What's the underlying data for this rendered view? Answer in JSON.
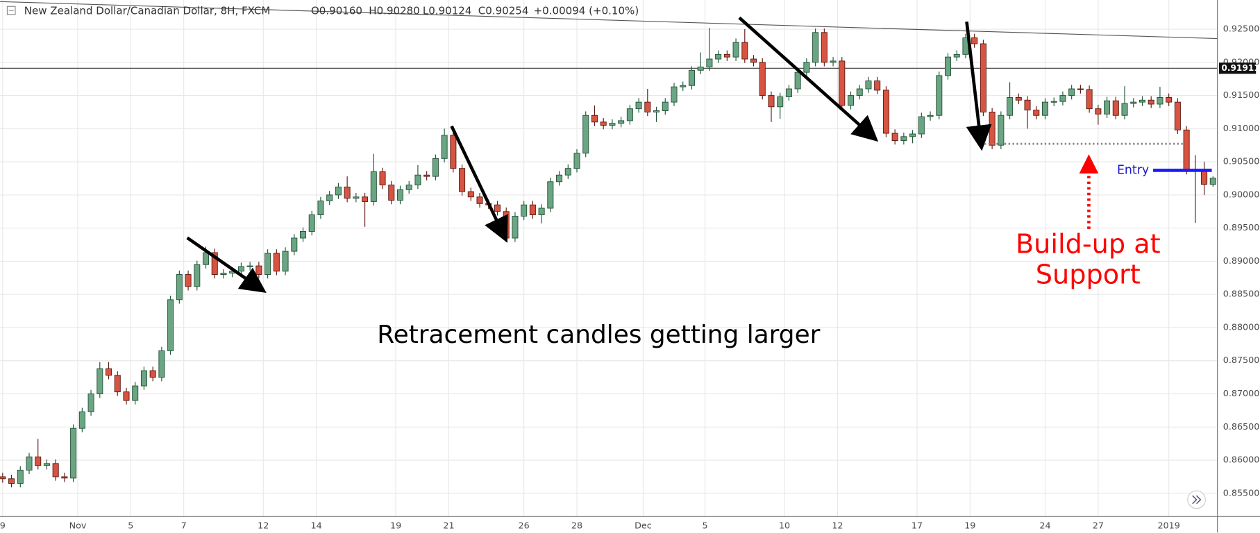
{
  "header": {
    "symbol": "New Zealand Dollar/Canadian Dollar, 8H, FXCM",
    "open": "O0.90160",
    "high": "H0.90280",
    "low": "L0.90124",
    "close": "C0.90254",
    "change": "+0.00094 (+0.10%)"
  },
  "chart_data": {
    "type": "candlestick",
    "open": [
      0.8575,
      0.8572,
      0.8565,
      0.8585,
      0.8605,
      0.8592,
      0.8595,
      0.8575,
      0.8573,
      0.8648,
      0.8673,
      0.87,
      0.8738,
      0.8728,
      0.8703,
      0.869,
      0.8712,
      0.8735,
      0.8725,
      0.8765,
      0.8842,
      0.888,
      0.8862,
      0.8895,
      0.8913,
      0.888,
      0.8882,
      0.8885,
      0.8892,
      0.8893,
      0.888,
      0.8912,
      0.8885,
      0.8915,
      0.8935,
      0.8945,
      0.897,
      0.8991,
      0.9,
      0.9012,
      0.8995,
      0.8997,
      0.899,
      0.9035,
      0.9015,
      0.8992,
      0.9008,
      0.9015,
      0.903,
      0.9028,
      0.9055,
      0.909,
      0.904,
      0.9005,
      0.8997,
      0.8987,
      0.8985,
      0.8975,
      0.8935,
      0.8968,
      0.8985,
      0.897,
      0.898,
      0.902,
      0.903,
      0.904,
      0.9063,
      0.912,
      0.911,
      0.9105,
      0.9108,
      0.9112,
      0.913,
      0.914,
      0.9125,
      0.9127,
      0.914,
      0.9163,
      0.9165,
      0.9188,
      0.9193,
      0.9205,
      0.9212,
      0.9208,
      0.923,
      0.9205,
      0.92,
      0.915,
      0.9133,
      0.9148,
      0.916,
      0.9185,
      0.92,
      0.9245,
      0.92,
      0.9202,
      0.9135,
      0.915,
      0.916,
      0.9172,
      0.9158,
      0.9093,
      0.9082,
      0.9088,
      0.9092,
      0.9118,
      0.912,
      0.918,
      0.9208,
      0.9212,
      0.9237,
      0.9228,
      0.9125,
      0.9075,
      0.912,
      0.9147,
      0.9143,
      0.9128,
      0.912,
      0.914,
      0.9141,
      0.915,
      0.916,
      0.9159,
      0.913,
      0.9122,
      0.9142,
      0.912,
      0.9138,
      0.914,
      0.9143,
      0.9137,
      0.9147,
      0.914,
      0.9098,
      0.9037,
      0.9036,
      0.9016
    ],
    "high": [
      0.8581,
      0.8578,
      0.8591,
      0.8611,
      0.8632,
      0.8601,
      0.8601,
      0.8581,
      0.8654,
      0.8679,
      0.8706,
      0.8748,
      0.8748,
      0.8734,
      0.8709,
      0.8718,
      0.8741,
      0.8741,
      0.8771,
      0.8848,
      0.8886,
      0.8886,
      0.8901,
      0.8922,
      0.8919,
      0.8888,
      0.8891,
      0.8898,
      0.8899,
      0.8899,
      0.8918,
      0.8918,
      0.8921,
      0.8941,
      0.8951,
      0.8976,
      0.8997,
      0.9006,
      0.9018,
      0.9028,
      0.9003,
      0.9003,
      0.9062,
      0.9041,
      0.9021,
      0.9014,
      0.9021,
      0.9045,
      0.9036,
      0.9061,
      0.91,
      0.9096,
      0.9046,
      0.9011,
      0.9003,
      0.8993,
      0.8991,
      0.8981,
      0.8974,
      0.8991,
      0.8991,
      0.8986,
      0.9026,
      0.9036,
      0.9046,
      0.9069,
      0.9126,
      0.9135,
      0.9116,
      0.9114,
      0.9118,
      0.9136,
      0.9146,
      0.916,
      0.9133,
      0.9146,
      0.9169,
      0.9171,
      0.9194,
      0.9215,
      0.9252,
      0.9218,
      0.9218,
      0.9236,
      0.925,
      0.9211,
      0.9206,
      0.9156,
      0.9154,
      0.9166,
      0.9191,
      0.9206,
      0.9251,
      0.9251,
      0.9208,
      0.9208,
      0.9156,
      0.9166,
      0.9178,
      0.9178,
      0.9164,
      0.9099,
      0.9094,
      0.9098,
      0.9124,
      0.9126,
      0.9186,
      0.9214,
      0.9218,
      0.9243,
      0.9243,
      0.9234,
      0.9131,
      0.9126,
      0.917,
      0.9153,
      0.9149,
      0.9134,
      0.9146,
      0.9147,
      0.9156,
      0.9166,
      0.9166,
      0.9165,
      0.9136,
      0.9148,
      0.9148,
      0.9164,
      0.9146,
      0.9149,
      0.9149,
      0.9163,
      0.9153,
      0.9146,
      0.9104,
      0.906,
      0.905,
      0.9028
    ],
    "low": [
      0.8566,
      0.8559,
      0.8559,
      0.8579,
      0.8586,
      0.8586,
      0.8569,
      0.8567,
      0.8567,
      0.8642,
      0.8667,
      0.8694,
      0.8722,
      0.8697,
      0.8684,
      0.8684,
      0.8706,
      0.8719,
      0.8719,
      0.8759,
      0.8836,
      0.8856,
      0.8856,
      0.8889,
      0.8874,
      0.8874,
      0.8876,
      0.8879,
      0.8886,
      0.8874,
      0.8874,
      0.8879,
      0.8879,
      0.8909,
      0.8929,
      0.8939,
      0.8964,
      0.8985,
      0.8994,
      0.8989,
      0.8989,
      0.8952,
      0.8984,
      0.9009,
      0.8986,
      0.8986,
      0.9002,
      0.9009,
      0.9022,
      0.9022,
      0.9049,
      0.9034,
      0.8999,
      0.8991,
      0.8981,
      0.8979,
      0.8969,
      0.8929,
      0.8929,
      0.8962,
      0.8964,
      0.8957,
      0.8974,
      0.9014,
      0.9024,
      0.9034,
      0.9057,
      0.9104,
      0.9099,
      0.9099,
      0.9102,
      0.9106,
      0.9124,
      0.9119,
      0.911,
      0.9121,
      0.9134,
      0.9157,
      0.9159,
      0.9182,
      0.9187,
      0.9199,
      0.9202,
      0.9202,
      0.9199,
      0.9194,
      0.9144,
      0.911,
      0.9115,
      0.9142,
      0.9154,
      0.9179,
      0.9194,
      0.9194,
      0.9194,
      0.9129,
      0.9129,
      0.9144,
      0.9154,
      0.9152,
      0.9087,
      0.9076,
      0.9076,
      0.9078,
      0.9086,
      0.9112,
      0.9114,
      0.9174,
      0.9202,
      0.9206,
      0.9222,
      0.9119,
      0.9069,
      0.9069,
      0.9114,
      0.9137,
      0.91,
      0.9114,
      0.9114,
      0.9134,
      0.9135,
      0.9144,
      0.9153,
      0.9124,
      0.9106,
      0.9116,
      0.9114,
      0.9114,
      0.9132,
      0.9134,
      0.9131,
      0.9131,
      0.9134,
      0.9092,
      0.9031,
      0.8958,
      0.9,
      0.90124
    ],
    "close": [
      0.8572,
      0.8565,
      0.8585,
      0.8605,
      0.8592,
      0.8595,
      0.8575,
      0.8573,
      0.8648,
      0.8673,
      0.87,
      0.8738,
      0.8728,
      0.8703,
      0.869,
      0.8712,
      0.8735,
      0.8725,
      0.8765,
      0.8842,
      0.888,
      0.8862,
      0.8895,
      0.8913,
      0.888,
      0.8882,
      0.8885,
      0.8892,
      0.8893,
      0.888,
      0.8912,
      0.8885,
      0.8915,
      0.8935,
      0.8945,
      0.897,
      0.8991,
      0.9,
      0.9012,
      0.8995,
      0.8997,
      0.899,
      0.9035,
      0.9015,
      0.8992,
      0.9008,
      0.9015,
      0.903,
      0.9028,
      0.9055,
      0.909,
      0.904,
      0.9005,
      0.8997,
      0.8987,
      0.8985,
      0.8975,
      0.8935,
      0.8968,
      0.8985,
      0.897,
      0.898,
      0.902,
      0.903,
      0.904,
      0.9063,
      0.912,
      0.911,
      0.9105,
      0.9108,
      0.9112,
      0.913,
      0.914,
      0.9125,
      0.9127,
      0.914,
      0.9163,
      0.9165,
      0.9188,
      0.9193,
      0.9205,
      0.9212,
      0.9208,
      0.923,
      0.9205,
      0.92,
      0.915,
      0.9133,
      0.9148,
      0.916,
      0.9185,
      0.92,
      0.9245,
      0.92,
      0.9202,
      0.9135,
      0.915,
      0.916,
      0.9172,
      0.9158,
      0.9093,
      0.9082,
      0.9088,
      0.9092,
      0.9118,
      0.912,
      0.918,
      0.9208,
      0.9212,
      0.9237,
      0.9228,
      0.9125,
      0.9075,
      0.912,
      0.9147,
      0.9143,
      0.9128,
      0.912,
      0.914,
      0.9141,
      0.915,
      0.916,
      0.9159,
      0.913,
      0.9122,
      0.9142,
      0.912,
      0.9138,
      0.914,
      0.9143,
      0.9137,
      0.9147,
      0.914,
      0.9098,
      0.9037,
      0.9036,
      0.9016,
      0.90254
    ],
    "up_color": "#6ba583",
    "down_color": "#d75442",
    "xlim": [
      -0.3,
      137.5
    ],
    "ylim": [
      0.8515,
      0.9294
    ],
    "grid": true,
    "yticks": [
      {
        "value": 0.855,
        "label": "0.85500"
      },
      {
        "value": 0.86,
        "label": "0.86000"
      },
      {
        "value": 0.865,
        "label": "0.86500"
      },
      {
        "value": 0.87,
        "label": "0.87000"
      },
      {
        "value": 0.875,
        "label": "0.87500"
      },
      {
        "value": 0.88,
        "label": "0.88000"
      },
      {
        "value": 0.885,
        "label": "0.88500"
      },
      {
        "value": 0.89,
        "label": "0.89000"
      },
      {
        "value": 0.895,
        "label": "0.89500"
      },
      {
        "value": 0.9,
        "label": "0.90000"
      },
      {
        "value": 0.905,
        "label": "0.90500"
      },
      {
        "value": 0.91,
        "label": "0.91000"
      },
      {
        "value": 0.915,
        "label": "0.91500"
      },
      {
        "value": 0.92,
        "label": "0.92000"
      },
      {
        "value": 0.925,
        "label": "0.92500"
      }
    ],
    "xticks": [
      {
        "value": 0,
        "label": "9"
      },
      {
        "value": 8.5,
        "label": "Nov"
      },
      {
        "value": 14.5,
        "label": "5"
      },
      {
        "value": 20.5,
        "label": "7"
      },
      {
        "value": 29.5,
        "label": "12"
      },
      {
        "value": 35.5,
        "label": "14"
      },
      {
        "value": 44.5,
        "label": "19"
      },
      {
        "value": 50.5,
        "label": "21"
      },
      {
        "value": 59,
        "label": "26"
      },
      {
        "value": 65,
        "label": "28"
      },
      {
        "value": 72.5,
        "label": "Dec"
      },
      {
        "value": 79.5,
        "label": "5"
      },
      {
        "value": 88.5,
        "label": "10"
      },
      {
        "value": 94.5,
        "label": "12"
      },
      {
        "value": 103.5,
        "label": "17"
      },
      {
        "value": 109.5,
        "label": "19"
      },
      {
        "value": 118,
        "label": "24"
      },
      {
        "value": 124,
        "label": "27"
      },
      {
        "value": 132,
        "label": "2019"
      }
    ],
    "price_line": {
      "value": 0.91911,
      "label": "0.91911"
    },
    "annotations": {
      "retracement": "Retracement candles getting larger",
      "buildup": [
        "Build-up at",
        "Support"
      ],
      "entry": "Entry"
    }
  }
}
